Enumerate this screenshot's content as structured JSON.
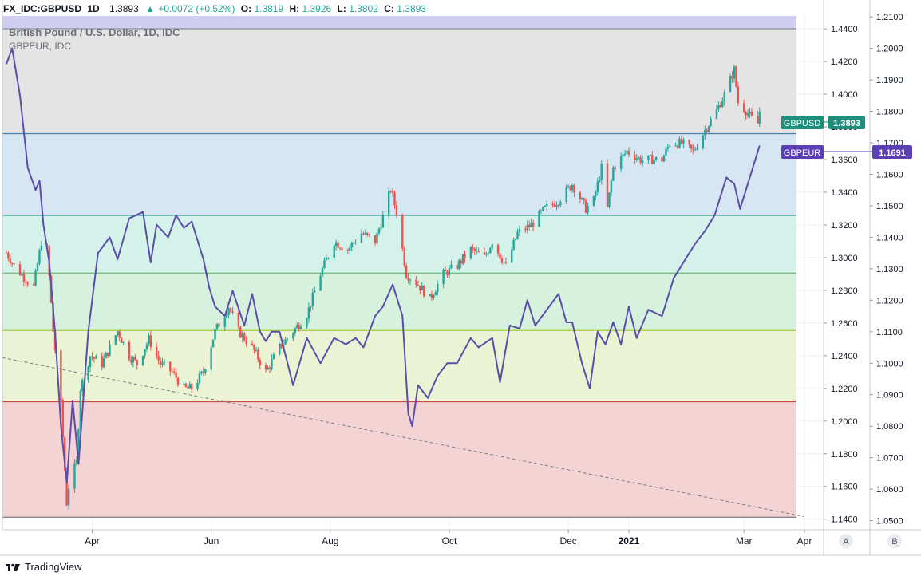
{
  "header": {
    "symbol": "FX_IDC:GBPUSD",
    "interval": "1D",
    "price": "1.3893",
    "change": "+0.0072 (+0.52%)",
    "o_label": "O:",
    "o": "1.3819",
    "h_label": "H:",
    "h": "1.3926",
    "l_label": "L:",
    "l": "1.3802",
    "c_label": "C:",
    "c": "1.3893"
  },
  "legend": {
    "main_series": "British Pound / U.S. Dollar, 1D, IDC",
    "compare_series": "GBPEUR, IDC"
  },
  "footer": {
    "brand": "TradingView"
  },
  "scale_buttons": [
    "A",
    "B"
  ],
  "colors": {
    "up": "#26a69a",
    "down": "#ef5350",
    "compare_line": "#5b4ea8",
    "gbpusd_badge": "#1e8f7c",
    "gbpeur_badge": "#5b3fb5",
    "band_top": "#d0cff2",
    "band_grey": "#e4e4e4",
    "band_blue": "#d6e6f2",
    "band_cyan": "#d4f2ea",
    "band_green": "#d7f1df",
    "band_yellow": "#eaf3d3",
    "band_red": "#f3d3d3"
  },
  "chart_data": {
    "type": "candlestick",
    "title": "British Pound / U.S. Dollar, 1D, IDC",
    "x_ticks": [
      "Apr",
      "Jun",
      "Aug",
      "Oct",
      "Dec",
      "2021",
      "Mar",
      "Apr"
    ],
    "y_left_ticks": [
      "1.4400",
      "1.4200",
      "1.4000",
      "1.3800",
      "1.3600",
      "1.3400",
      "1.3200",
      "1.3000",
      "1.2800",
      "1.2600",
      "1.2400",
      "1.2200",
      "1.2000",
      "1.1800",
      "1.1600",
      "1.1400"
    ],
    "y_right_ticks": [
      "1.2100",
      "1.2000",
      "1.1900",
      "1.1800",
      "1.1700",
      "1.1600",
      "1.1500",
      "1.1400",
      "1.1300",
      "1.1200",
      "1.1100",
      "1.1000",
      "1.0900",
      "1.0800",
      "1.0700",
      "1.0600",
      "1.0500"
    ],
    "y_left_range": [
      1.1335,
      1.4479
    ],
    "y_right_range": [
      1.0471,
      1.2103
    ],
    "fib_levels_gbpusd": [
      1.1412,
      1.2118,
      1.2554,
      1.2906,
      1.3258,
      1.3758,
      1.4401
    ],
    "trendline": {
      "from": [
        "2020-02-15",
        1.2388
      ],
      "to": [
        "2021-04-01",
        1.1415
      ]
    },
    "series": [
      {
        "name": "GBPUSD",
        "kind": "candles",
        "last_label": "1.3893",
        "closes": [
          [
            "2020-02-17",
            1.303
          ],
          [
            "2020-02-21",
            1.295
          ],
          [
            "2020-02-26",
            1.288
          ],
          [
            "2020-03-02",
            1.282
          ],
          [
            "2020-03-06",
            1.31
          ],
          [
            "2020-03-09",
            1.305
          ],
          [
            "2020-03-12",
            1.255
          ],
          [
            "2020-03-16",
            1.21
          ],
          [
            "2020-03-19",
            1.15
          ],
          [
            "2020-03-20",
            1.16
          ],
          [
            "2020-03-24",
            1.175
          ],
          [
            "2020-03-26",
            1.22
          ],
          [
            "2020-03-31",
            1.24
          ],
          [
            "2020-04-06",
            1.235
          ],
          [
            "2020-04-10",
            1.245
          ],
          [
            "2020-04-14",
            1.255
          ],
          [
            "2020-04-20",
            1.24
          ],
          [
            "2020-04-24",
            1.235
          ],
          [
            "2020-04-30",
            1.25
          ],
          [
            "2020-05-06",
            1.235
          ],
          [
            "2020-05-12",
            1.23
          ],
          [
            "2020-05-18",
            1.22
          ],
          [
            "2020-05-22",
            1.22
          ],
          [
            "2020-05-28",
            1.23
          ],
          [
            "2020-06-03",
            1.255
          ],
          [
            "2020-06-10",
            1.27
          ],
          [
            "2020-06-15",
            1.255
          ],
          [
            "2020-06-22",
            1.245
          ],
          [
            "2020-06-29",
            1.23
          ],
          [
            "2020-07-06",
            1.245
          ],
          [
            "2020-07-13",
            1.255
          ],
          [
            "2020-07-20",
            1.265
          ],
          [
            "2020-07-27",
            1.29
          ],
          [
            "2020-08-03",
            1.31
          ],
          [
            "2020-08-10",
            1.305
          ],
          [
            "2020-08-17",
            1.315
          ],
          [
            "2020-08-24",
            1.31
          ],
          [
            "2020-08-28",
            1.325
          ],
          [
            "2020-09-01",
            1.342
          ],
          [
            "2020-09-04",
            1.328
          ],
          [
            "2020-09-09",
            1.29
          ],
          [
            "2020-09-14",
            1.285
          ],
          [
            "2020-09-21",
            1.275
          ],
          [
            "2020-09-28",
            1.29
          ],
          [
            "2020-10-05",
            1.295
          ],
          [
            "2020-10-12",
            1.305
          ],
          [
            "2020-10-19",
            1.3
          ],
          [
            "2020-10-23",
            1.31
          ],
          [
            "2020-10-30",
            1.295
          ],
          [
            "2020-11-05",
            1.315
          ],
          [
            "2020-11-12",
            1.32
          ],
          [
            "2020-11-19",
            1.33
          ],
          [
            "2020-11-26",
            1.335
          ],
          [
            "2020-12-03",
            1.345
          ],
          [
            "2020-12-10",
            1.33
          ],
          [
            "2020-12-14",
            1.335
          ],
          [
            "2020-12-18",
            1.355
          ],
          [
            "2020-12-21",
            1.33
          ],
          [
            "2020-12-24",
            1.355
          ],
          [
            "2020-12-31",
            1.365
          ],
          [
            "2021-01-07",
            1.36
          ],
          [
            "2021-01-12",
            1.36
          ],
          [
            "2021-01-18",
            1.36
          ],
          [
            "2021-01-22",
            1.37
          ],
          [
            "2021-01-28",
            1.37
          ],
          [
            "2021-02-03",
            1.365
          ],
          [
            "2021-02-09",
            1.378
          ],
          [
            "2021-02-15",
            1.39
          ],
          [
            "2021-02-19",
            1.4
          ],
          [
            "2021-02-24",
            1.415
          ],
          [
            "2021-02-26",
            1.395
          ],
          [
            "2021-03-02",
            1.39
          ],
          [
            "2021-03-05",
            1.385
          ],
          [
            "2021-03-08",
            1.382
          ],
          [
            "2021-03-09",
            1.3893
          ]
        ]
      },
      {
        "name": "GBPEUR",
        "kind": "line",
        "last_label": "1.1691",
        "values": [
          [
            "2020-02-17",
            1.195
          ],
          [
            "2020-02-20",
            1.2
          ],
          [
            "2020-02-24",
            1.185
          ],
          [
            "2020-02-28",
            1.162
          ],
          [
            "2020-03-03",
            1.155
          ],
          [
            "2020-03-05",
            1.158
          ],
          [
            "2020-03-07",
            1.144
          ],
          [
            "2020-03-10",
            1.132
          ],
          [
            "2020-03-13",
            1.11
          ],
          [
            "2020-03-16",
            1.08
          ],
          [
            "2020-03-19",
            1.062
          ],
          [
            "2020-03-22",
            1.088
          ],
          [
            "2020-03-25",
            1.068
          ],
          [
            "2020-03-30",
            1.11
          ],
          [
            "2020-04-04",
            1.135
          ],
          [
            "2020-04-10",
            1.14
          ],
          [
            "2020-04-14",
            1.133
          ],
          [
            "2020-04-20",
            1.146
          ],
          [
            "2020-04-27",
            1.148
          ],
          [
            "2020-05-01",
            1.132
          ],
          [
            "2020-05-04",
            1.144
          ],
          [
            "2020-05-10",
            1.14
          ],
          [
            "2020-05-14",
            1.147
          ],
          [
            "2020-05-18",
            1.143
          ],
          [
            "2020-05-22",
            1.145
          ],
          [
            "2020-05-28",
            1.133
          ],
          [
            "2020-05-31",
            1.124
          ],
          [
            "2020-06-03",
            1.118
          ],
          [
            "2020-06-08",
            1.115
          ],
          [
            "2020-06-12",
            1.123
          ],
          [
            "2020-06-18",
            1.112
          ],
          [
            "2020-06-22",
            1.122
          ],
          [
            "2020-06-26",
            1.11
          ],
          [
            "2020-06-29",
            1.107
          ],
          [
            "2020-07-02",
            1.11
          ],
          [
            "2020-07-06",
            1.11
          ],
          [
            "2020-07-13",
            1.093
          ],
          [
            "2020-07-20",
            1.108
          ],
          [
            "2020-07-27",
            1.1
          ],
          [
            "2020-08-03",
            1.108
          ],
          [
            "2020-08-09",
            1.106
          ],
          [
            "2020-08-14",
            1.108
          ],
          [
            "2020-08-18",
            1.105
          ],
          [
            "2020-08-24",
            1.115
          ],
          [
            "2020-08-28",
            1.118
          ],
          [
            "2020-09-02",
            1.125
          ],
          [
            "2020-09-07",
            1.115
          ],
          [
            "2020-09-10",
            1.084
          ],
          [
            "2020-09-12",
            1.08
          ],
          [
            "2020-09-15",
            1.093
          ],
          [
            "2020-09-20",
            1.089
          ],
          [
            "2020-09-25",
            1.096
          ],
          [
            "2020-09-30",
            1.1
          ],
          [
            "2020-10-05",
            1.1
          ],
          [
            "2020-10-12",
            1.108
          ],
          [
            "2020-10-16",
            1.105
          ],
          [
            "2020-10-23",
            1.108
          ],
          [
            "2020-10-27",
            1.094
          ],
          [
            "2020-11-01",
            1.112
          ],
          [
            "2020-11-06",
            1.111
          ],
          [
            "2020-11-10",
            1.12
          ],
          [
            "2020-11-14",
            1.112
          ],
          [
            "2020-11-20",
            1.117
          ],
          [
            "2020-11-26",
            1.122
          ],
          [
            "2020-11-30",
            1.113
          ],
          [
            "2020-12-03",
            1.113
          ],
          [
            "2020-12-08",
            1.1
          ],
          [
            "2020-12-12",
            1.092
          ],
          [
            "2020-12-16",
            1.11
          ],
          [
            "2020-12-20",
            1.106
          ],
          [
            "2020-12-24",
            1.113
          ],
          [
            "2020-12-28",
            1.106
          ],
          [
            "2021-01-01",
            1.118
          ],
          [
            "2021-01-05",
            1.108
          ],
          [
            "2021-01-11",
            1.117
          ],
          [
            "2021-01-18",
            1.115
          ],
          [
            "2021-01-24",
            1.127
          ],
          [
            "2021-01-30",
            1.133
          ],
          [
            "2021-02-04",
            1.138
          ],
          [
            "2021-02-09",
            1.142
          ],
          [
            "2021-02-14",
            1.147
          ],
          [
            "2021-02-20",
            1.159
          ],
          [
            "2021-02-24",
            1.157
          ],
          [
            "2021-02-27",
            1.149
          ],
          [
            "2021-03-04",
            1.159
          ],
          [
            "2021-03-09",
            1.1691
          ]
        ]
      }
    ]
  }
}
